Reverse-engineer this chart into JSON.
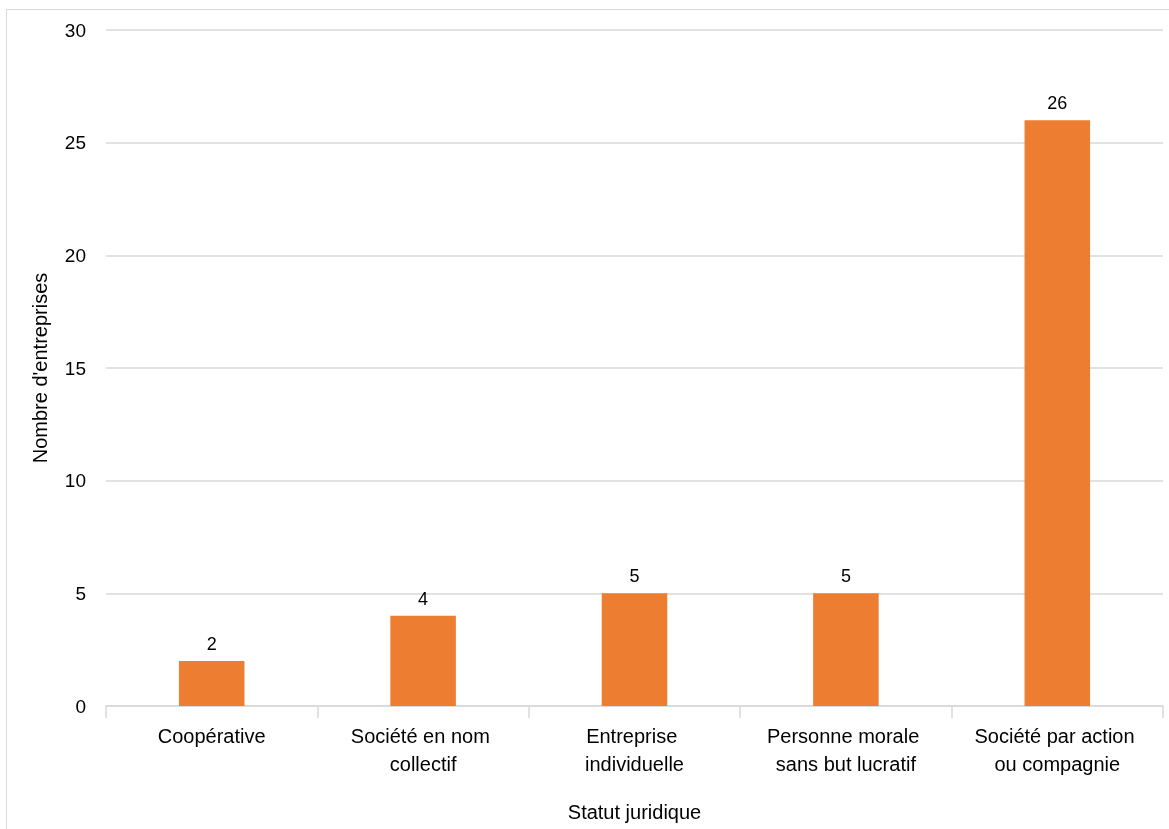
{
  "chart_data": {
    "type": "bar",
    "categories": [
      "Coopérative",
      "Société en nom collectif",
      "Entreprise individuelle",
      "Personne morale sans but lucratif",
      "Société par action ou compagnie"
    ],
    "values": [
      2,
      4,
      5,
      5,
      26
    ],
    "color": "#ed7d31",
    "xlabel": "Statut juridique",
    "ylabel": "Nombre d'entreprises",
    "ylim": [
      0,
      30
    ],
    "yticks": [
      0,
      5,
      10,
      15,
      20,
      25,
      30
    ],
    "grid": "y",
    "data_labels": true
  }
}
